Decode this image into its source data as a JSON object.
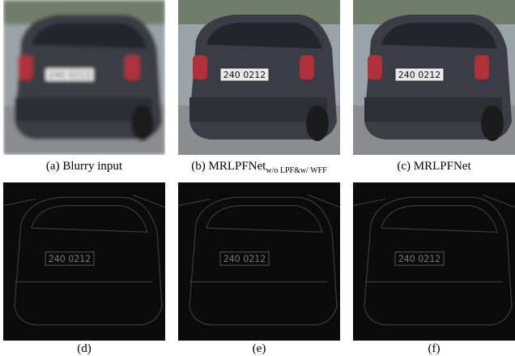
{
  "figure": {
    "plate": "240 0212",
    "panels": [
      {
        "caption": "(a) Blurry input"
      },
      {
        "caption": "(b) MRLPFNet",
        "subscript": "w/o LPF&w/ WFF"
      },
      {
        "caption": "(c) MRLPFNet"
      },
      {
        "caption": "(d)"
      },
      {
        "caption": "(e)"
      },
      {
        "caption": "(f)"
      }
    ]
  }
}
